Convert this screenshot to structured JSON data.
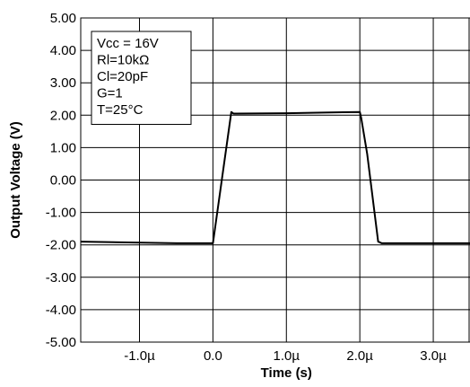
{
  "chart_data": {
    "type": "line",
    "title": "",
    "xlabel": "Time (s)",
    "ylabel": "Output Voltage (V)",
    "xlim": [
      -1.8,
      3.5
    ],
    "ylim": [
      -5,
      5
    ],
    "grid": true,
    "x_ticks": [
      {
        "value": -1.0,
        "label": "-1.0µ"
      },
      {
        "value": 0.0,
        "label": "0.0"
      },
      {
        "value": 1.0,
        "label": "1.0µ"
      },
      {
        "value": 2.0,
        "label": "2.0µ"
      },
      {
        "value": 3.0,
        "label": "3.0µ"
      }
    ],
    "y_ticks": [
      {
        "value": 5,
        "label": "5.00"
      },
      {
        "value": 4,
        "label": "4.00"
      },
      {
        "value": 3,
        "label": "3.00"
      },
      {
        "value": 2,
        "label": "2.00"
      },
      {
        "value": 1,
        "label": "1.00"
      },
      {
        "value": 0,
        "label": "0.00"
      },
      {
        "value": -1,
        "label": "-1.00"
      },
      {
        "value": -2,
        "label": "-2.00"
      },
      {
        "value": -3,
        "label": "-3.00"
      },
      {
        "value": -4,
        "label": "-4.00"
      },
      {
        "value": -5,
        "label": "-5.00"
      }
    ],
    "annotation_lines": [
      "Vcc = 16V",
      "Rl=10kΩ",
      "Cl=20pF",
      "G=1",
      "T=25°C"
    ],
    "annotation_position": "top-left",
    "series": [
      {
        "color": "#000000",
        "x": [
          -1.8,
          -0.5,
          0.0,
          0.25,
          0.28,
          0.32,
          1.0,
          1.5,
          2.0,
          2.02,
          2.1,
          2.25,
          2.3,
          3.0,
          3.5
        ],
        "y": [
          -1.9,
          -1.95,
          -1.95,
          2.1,
          2.05,
          2.05,
          2.06,
          2.08,
          2.1,
          1.9,
          0.8,
          -1.9,
          -1.95,
          -1.95,
          -1.95
        ]
      }
    ]
  }
}
